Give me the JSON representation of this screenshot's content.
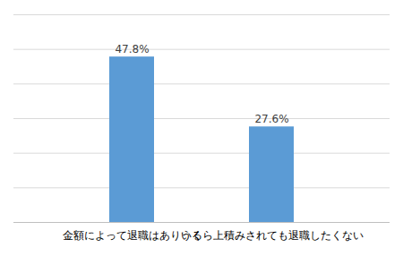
{
  "chart_data": {
    "type": "bar",
    "categories": [
      "金額によって退職はありうる",
      "いくら上積みされても退職したくない"
    ],
    "values": [
      47.8,
      27.6
    ],
    "value_labels": [
      "47.8%",
      "27.6%"
    ],
    "color": "#5b9bd5",
    "ylim": [
      0,
      60
    ],
    "yticks": [
      0,
      10,
      20,
      30,
      40,
      50,
      60
    ],
    "grid": true,
    "data_labels": true,
    "tick_labels": "x"
  }
}
